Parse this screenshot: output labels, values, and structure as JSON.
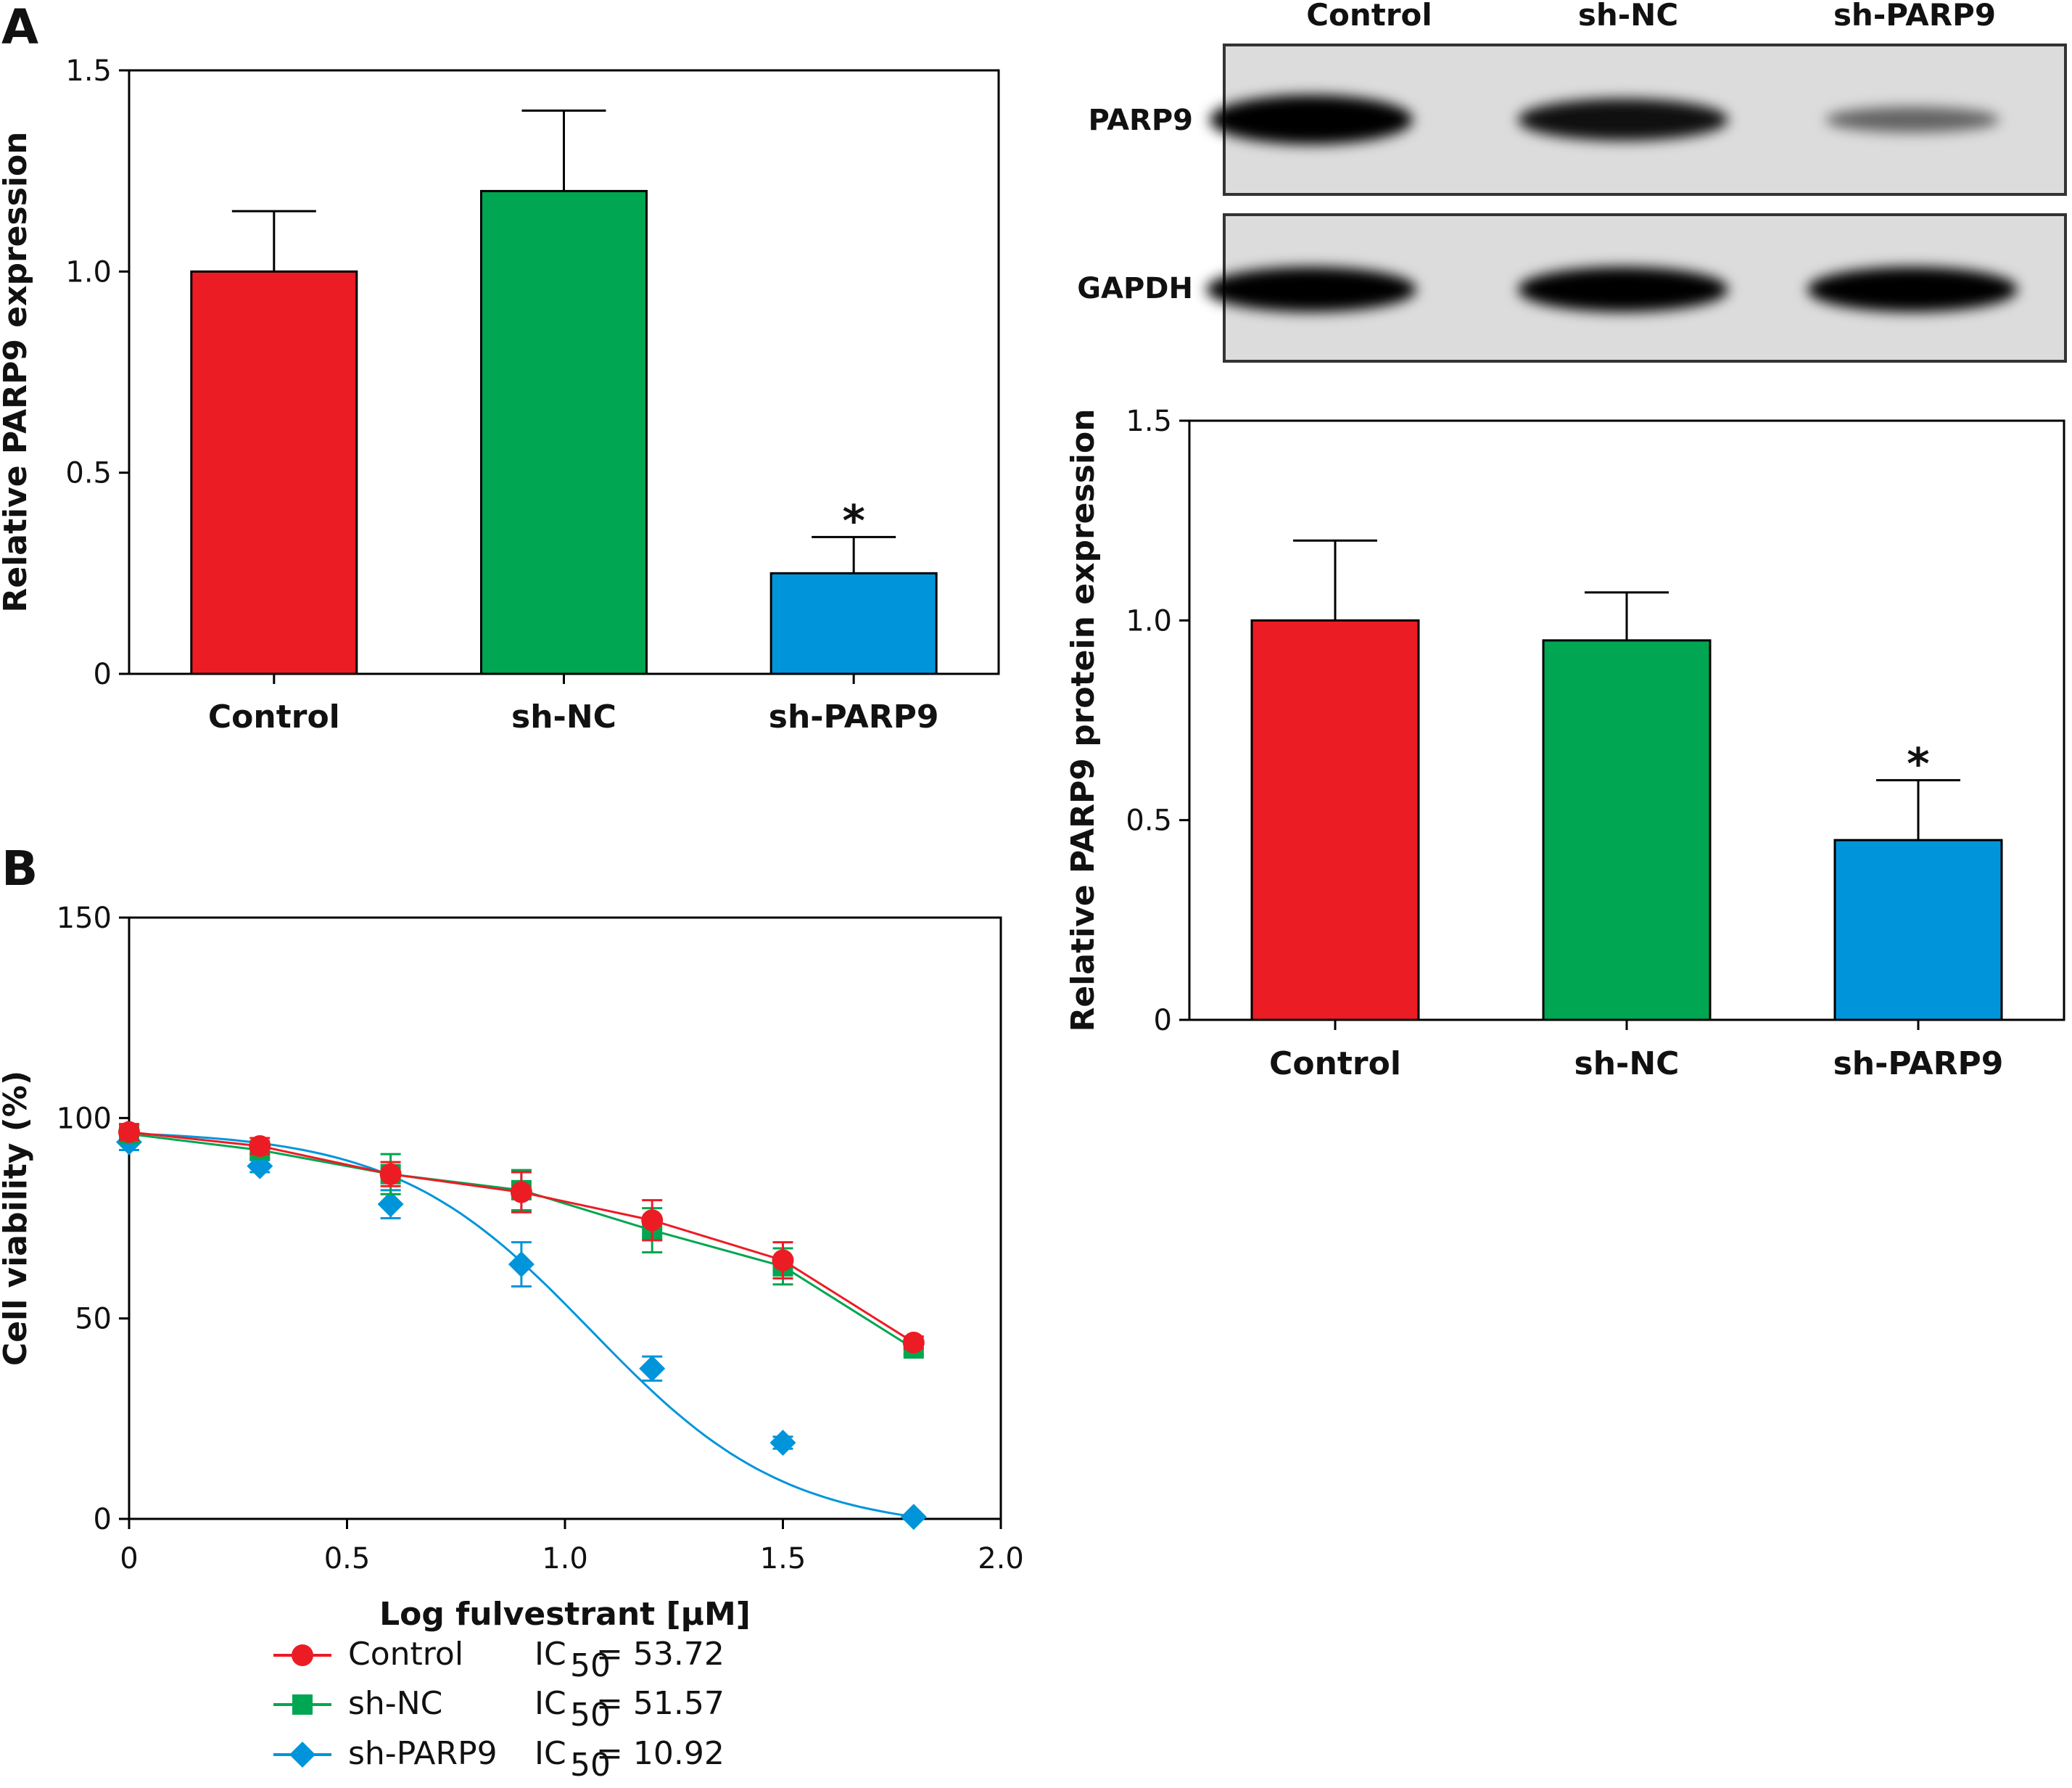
{
  "panels": {
    "a": "A",
    "b": "B"
  },
  "blot": {
    "lanes": [
      "Control",
      "sh-NC",
      "sh-PARP9"
    ],
    "rows": [
      {
        "label": "PARP9",
        "intensity": [
          1.0,
          0.8,
          0.35
        ]
      },
      {
        "label": "GAPDH",
        "intensity": [
          1.0,
          1.0,
          1.0
        ]
      }
    ]
  },
  "chart_data": [
    {
      "type": "bar",
      "panel": "A",
      "categories": [
        "Control",
        "sh-NC",
        "sh-PARP9"
      ],
      "values": [
        1.0,
        1.2,
        0.25
      ],
      "errors": [
        0.15,
        0.2,
        0.09
      ],
      "significance": [
        "",
        "",
        "*"
      ],
      "colors": [
        "#ec1c24",
        "#00a651",
        "#0095da"
      ],
      "ylabel": "Relative PARP9 expression",
      "ylim": [
        0,
        1.5
      ],
      "yticks": [
        0,
        0.5,
        1.0,
        1.5
      ],
      "ytick_labels": [
        "0",
        "0.5",
        "1.0",
        "1.5"
      ]
    },
    {
      "type": "bar",
      "panel": "A",
      "categories": [
        "Control",
        "sh-NC",
        "sh-PARP9"
      ],
      "values": [
        1.0,
        0.95,
        0.45
      ],
      "errors": [
        0.2,
        0.12,
        0.15
      ],
      "significance": [
        "",
        "",
        "*"
      ],
      "colors": [
        "#ec1c24",
        "#00a651",
        "#0095da"
      ],
      "ylabel": "Relative PARP9 protein expression",
      "ylim": [
        0,
        1.5
      ],
      "yticks": [
        0,
        0.5,
        1.0,
        1.5
      ],
      "ytick_labels": [
        "0",
        "0.5",
        "1.0",
        "1.5"
      ]
    },
    {
      "type": "line",
      "panel": "B",
      "xlabel": "Log fulvestrant [μM]",
      "ylabel": "Cell viability (%)",
      "xlim": [
        0,
        2.0
      ],
      "ylim": [
        0,
        150
      ],
      "xticks": [
        0,
        0.5,
        1.0,
        1.5,
        2.0
      ],
      "xtick_labels": [
        "0",
        "0.5",
        "1.0",
        "1.5",
        "2.0"
      ],
      "yticks": [
        0,
        50,
        100,
        150
      ],
      "ytick_labels": [
        "0",
        "50",
        "100",
        "150"
      ],
      "x": [
        0,
        0.3,
        0.6,
        0.9,
        1.2,
        1.5,
        1.8
      ],
      "series": [
        {
          "name": "Control",
          "ic50_label": "IC",
          "ic50_sub": "50",
          "ic50_value": " = 53.72",
          "color": "#ec1c24",
          "marker": "circle",
          "fit": "line",
          "values": [
            96.5,
            93,
            86,
            81.5,
            74.5,
            64.5,
            44
          ],
          "errors": [
            2,
            2,
            3,
            5,
            5,
            4.5,
            1.5
          ]
        },
        {
          "name": "sh-NC",
          "ic50_label": "IC",
          "ic50_sub": "50",
          "ic50_value": " = 51.57",
          "color": "#00a651",
          "marker": "square",
          "fit": "line",
          "values": [
            96,
            92,
            86,
            82,
            72,
            63,
            42.5
          ],
          "errors": [
            2,
            2,
            5,
            5,
            5.5,
            4.5,
            1.5
          ]
        },
        {
          "name": "sh-PARP9",
          "ic50_label": "IC",
          "ic50_sub": "50",
          "ic50_value": " = 10.92",
          "color": "#0095da",
          "marker": "diamond",
          "fit": "curve",
          "values": [
            94,
            88,
            78.5,
            63.5,
            37.5,
            19,
            0.5
          ],
          "errors": [
            2,
            1.5,
            3.5,
            5.5,
            3,
            1.5,
            0.5
          ]
        }
      ]
    }
  ]
}
